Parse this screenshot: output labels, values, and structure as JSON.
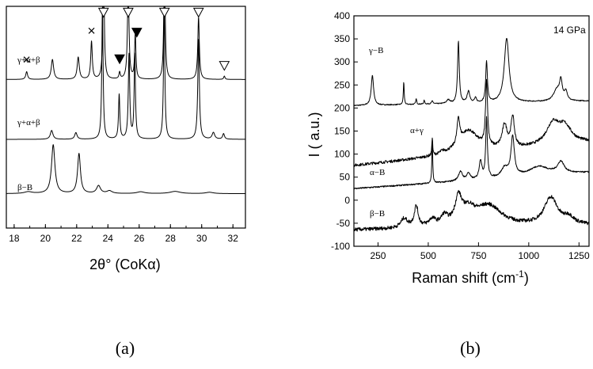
{
  "chart_data": [
    {
      "type": "line",
      "panel_label": "(a)",
      "xlabel": "2θ° (CoKα)",
      "ylabel": "",
      "xlim": [
        17.5,
        32.8
      ],
      "x_ticks": [
        18,
        20,
        22,
        24,
        26,
        28,
        30,
        32
      ],
      "y_ticks_shown": false,
      "grid": false,
      "series": [
        {
          "name": "γ+α+β",
          "baseline": 0.67,
          "peaks": [
            [
              18.8,
              0.035,
              0.07
            ],
            [
              20.45,
              0.09,
              0.09
            ],
            [
              22.1,
              0.1,
              0.08
            ],
            [
              22.95,
              0.17,
              0.06
            ],
            [
              23.72,
              0.6,
              0.05
            ],
            [
              24.75,
              0.03,
              0.05
            ],
            [
              25.3,
              0.42,
              0.06
            ],
            [
              25.75,
              0.2,
              0.05
            ],
            [
              27.62,
              0.6,
              0.05
            ],
            [
              29.8,
              0.28,
              0.06
            ],
            [
              31.45,
              0.015,
              0.05
            ]
          ]
        },
        {
          "name": "γ+α+β",
          "baseline": 0.4,
          "peaks": [
            [
              20.4,
              0.04,
              0.1
            ],
            [
              21.95,
              0.03,
              0.09
            ],
            [
              23.65,
              0.6,
              0.05
            ],
            [
              24.72,
              0.2,
              0.05
            ],
            [
              25.35,
              0.38,
              0.055
            ],
            [
              25.72,
              0.38,
              0.05
            ],
            [
              27.6,
              0.6,
              0.05
            ],
            [
              29.8,
              0.45,
              0.06
            ],
            [
              30.75,
              0.03,
              0.1
            ],
            [
              31.4,
              0.025,
              0.07
            ]
          ]
        },
        {
          "name": "β−B",
          "baseline": 0.155,
          "peaks": [
            [
              18.9,
              0.008,
              0.3
            ],
            [
              20.5,
              0.22,
              0.13
            ],
            [
              22.15,
              0.18,
              0.11
            ],
            [
              23.4,
              0.035,
              0.15
            ],
            [
              24.1,
              0.012,
              0.2
            ],
            [
              26.1,
              0.008,
              0.3
            ],
            [
              28.3,
              0.01,
              0.4
            ],
            [
              30.5,
              0.006,
              0.3
            ]
          ]
        }
      ],
      "markers": [
        {
          "type": "cross",
          "x": 18.8,
          "y": 0.76
        },
        {
          "type": "cross",
          "x": 22.95,
          "y": 0.89
        },
        {
          "type": "filled-triangle",
          "x": 24.75,
          "y": 0.76
        },
        {
          "type": "filled-triangle",
          "x": 25.85,
          "y": 0.88
        },
        {
          "type": "open-triangle",
          "x": 23.72,
          "y": 0.97
        },
        {
          "type": "open-triangle",
          "x": 25.3,
          "y": 0.97
        },
        {
          "type": "open-triangle",
          "x": 27.62,
          "y": 0.97
        },
        {
          "type": "open-triangle",
          "x": 29.8,
          "y": 0.97
        },
        {
          "type": "open-triangle",
          "x": 31.45,
          "y": 0.73
        }
      ]
    },
    {
      "type": "line",
      "panel_label": "(b)",
      "title": "",
      "annotation": "14 GPa",
      "xlabel": "Raman shift (cm",
      "xlabel_sup": "-1",
      "xlabel_end": ")",
      "ylabel": "I ( a.u.)",
      "xlim": [
        130,
        1300
      ],
      "ylim": [
        -100,
        400
      ],
      "x_ticks": [
        250,
        500,
        750,
        1000,
        1250
      ],
      "y_ticks": [
        -100,
        -50,
        0,
        50,
        100,
        150,
        200,
        250,
        300,
        350,
        400
      ],
      "grid": false,
      "series": [
        {
          "name": "γ−B",
          "baseline": 205,
          "end_value": 215,
          "noise": 1,
          "peaks": [
            [
              222,
              65,
              7
            ],
            [
              378,
              50,
              2.5
            ],
            [
              440,
              12,
              3
            ],
            [
              480,
              8,
              3
            ],
            [
              520,
              6,
              5
            ],
            [
              600,
              8,
              10
            ],
            [
              650,
              135,
              5
            ],
            [
              700,
              25,
              8
            ],
            [
              735,
              10,
              6
            ],
            [
              790,
              90,
              5
            ],
            [
              890,
              140,
              14
            ],
            [
              1140,
              25,
              20
            ],
            [
              1160,
              40,
              8
            ],
            [
              1185,
              20,
              8
            ]
          ]
        },
        {
          "name": "α+γ",
          "baseline": 75,
          "end_value": 125,
          "noise": 3,
          "peaks": [
            [
              520,
              40,
              2.5
            ],
            [
              570,
              5,
              15
            ],
            [
              650,
              55,
              8
            ],
            [
              700,
              50,
              60
            ],
            [
              790,
              140,
              6
            ],
            [
              880,
              50,
              15
            ],
            [
              920,
              65,
              10
            ],
            [
              1120,
              45,
              40
            ],
            [
              1180,
              35,
              40
            ]
          ]
        },
        {
          "name": "α−B",
          "baseline": 25,
          "end_value": 60,
          "noise": 1.5,
          "peaks": [
            [
              520,
              95,
              2.5
            ],
            [
              660,
              20,
              12
            ],
            [
              700,
              15,
              10
            ],
            [
              760,
              40,
              8
            ],
            [
              790,
              130,
              5
            ],
            [
              920,
              85,
              10
            ],
            [
              880,
              20,
              20
            ],
            [
              1050,
              20,
              60
            ],
            [
              1160,
              25,
              20
            ]
          ]
        },
        {
          "name": "β−B",
          "baseline": -65,
          "end_value": -55,
          "noise": 4,
          "peaks": [
            [
              380,
              20,
              20
            ],
            [
              440,
              45,
              12
            ],
            [
              520,
              15,
              20
            ],
            [
              580,
              20,
              20
            ],
            [
              650,
              55,
              20
            ],
            [
              700,
              30,
              40
            ],
            [
              800,
              45,
              80
            ],
            [
              1110,
              60,
              40
            ],
            [
              1200,
              15,
              30
            ]
          ]
        }
      ]
    }
  ]
}
